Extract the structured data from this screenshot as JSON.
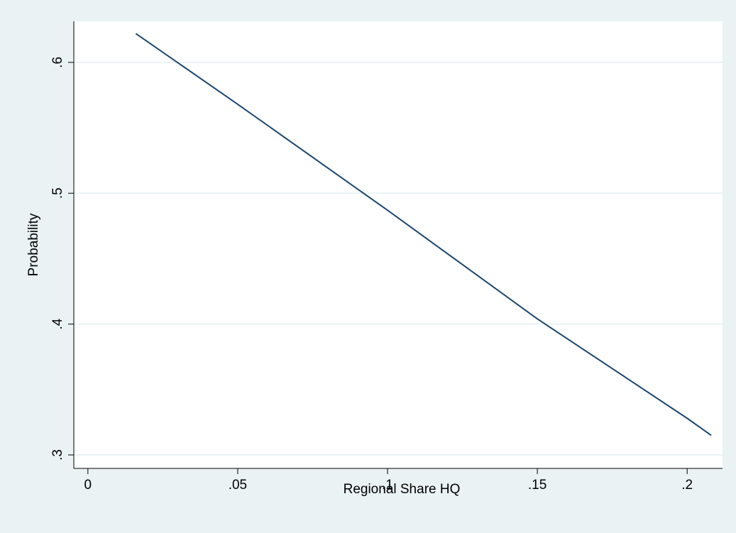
{
  "chart_data": {
    "type": "line",
    "x_label": "Regional Share HQ",
    "y_label": "Probability",
    "x": [
      0.016,
      0.05,
      0.1,
      0.15,
      0.2,
      0.208
    ],
    "series": [
      {
        "color": "#1a476f",
        "values": [
          0.622,
          0.568,
          0.487,
          0.404,
          0.328,
          0.315
        ]
      }
    ],
    "xlim": [
      -0.0047,
      0.2118
    ],
    "ylim": [
      0.2897,
      0.6314
    ],
    "xticks": [
      0,
      {
        "value": 0.05,
        "label": ".05"
      },
      {
        "value": 0.1,
        "label": ".1"
      },
      {
        "value": 0.15,
        "label": ".15"
      },
      {
        "value": 0.2,
        "label": ".2"
      }
    ],
    "yticks": [
      {
        "value": 0.3,
        "label": ".3"
      },
      {
        "value": 0.4,
        "label": ".4"
      },
      {
        "value": 0.5,
        "label": ".5"
      },
      {
        "value": 0.6,
        "label": ".6"
      }
    ],
    "grid": true
  }
}
